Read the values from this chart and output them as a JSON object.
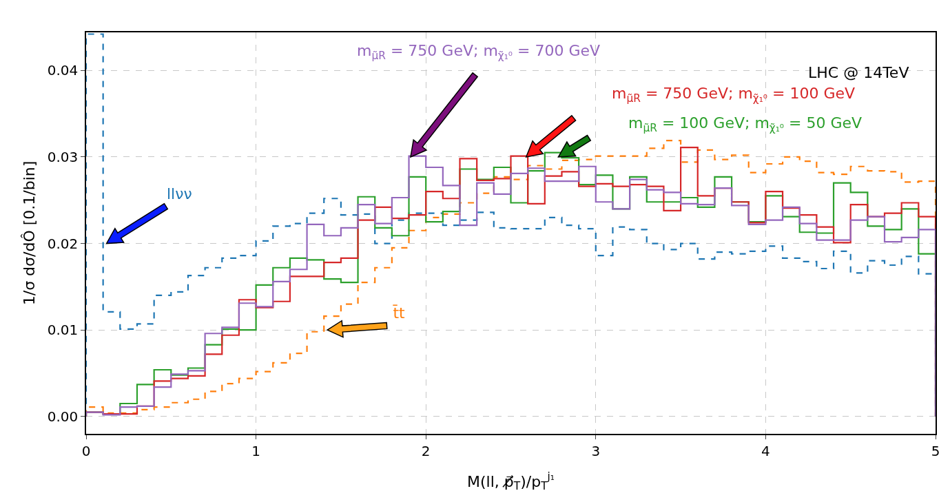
{
  "chart_data": {
    "type": "histogram",
    "xlabel": "M(ll, p̸⃗$_{T}$)/p$_{T}$$^{j₁}$",
    "ylabel": "1/σ dσ/dÔ [0.1/bin]",
    "annotations": [
      "LHC @ 14TeV"
    ],
    "bins": [
      0,
      0.1,
      0.2,
      0.3,
      0.4,
      0.5,
      0.6,
      0.7,
      0.8,
      0.9,
      1,
      1.1,
      1.2,
      1.3,
      1.4,
      1.5,
      1.6,
      1.7,
      1.8,
      1.9,
      2,
      2.1,
      2.2,
      2.3,
      2.4,
      2.5,
      2.6,
      2.7,
      2.8,
      2.9,
      3,
      3.1,
      3.2,
      3.3,
      3.4,
      3.5,
      3.6,
      3.7,
      3.8,
      3.9,
      4,
      4.1,
      4.2,
      4.3,
      4.4,
      4.5,
      4.6,
      4.7,
      4.8,
      4.9,
      5
    ],
    "series": [
      {
        "name": "llνν",
        "color": "#1f77b4",
        "line_style": "dashed",
        "values": [
          0.0442,
          0.0121,
          0.0101,
          0.0107,
          0.014,
          0.0144,
          0.0163,
          0.0172,
          0.0183,
          0.0186,
          0.0203,
          0.022,
          0.0223,
          0.0235,
          0.0252,
          0.0233,
          0.0234,
          0.02,
          0.0227,
          0.0235,
          0.0235,
          0.0221,
          0.0227,
          0.0236,
          0.0218,
          0.0217,
          0.0217,
          0.023,
          0.0221,
          0.0217,
          0.0186,
          0.0219,
          0.0216,
          0.02,
          0.0193,
          0.02,
          0.0182,
          0.019,
          0.0188,
          0.0191,
          0.0197,
          0.0183,
          0.0179,
          0.0171,
          0.0191,
          0.0166,
          0.018,
          0.0175,
          0.0185,
          0.0165
        ]
      },
      {
        "name": "t̄t",
        "color": "#ff7f0e",
        "line_style": "dashed",
        "values": [
          0.0011,
          0.0004,
          0.0004,
          0.0008,
          0.0011,
          0.0016,
          0.002,
          0.0029,
          0.0038,
          0.0044,
          0.0052,
          0.0062,
          0.0073,
          0.0098,
          0.0116,
          0.013,
          0.0155,
          0.0172,
          0.0195,
          0.0215,
          0.023,
          0.0234,
          0.0247,
          0.0258,
          0.0277,
          0.0274,
          0.029,
          0.0286,
          0.0296,
          0.0297,
          0.0301,
          0.0301,
          0.0301,
          0.031,
          0.0319,
          0.0294,
          0.0308,
          0.0297,
          0.0302,
          0.0282,
          0.0292,
          0.03,
          0.0295,
          0.0282,
          0.028,
          0.0289,
          0.0284,
          0.0283,
          0.0271,
          0.0272
        ]
      },
      {
        "name": "m$_{μ̃R}$ = 100 GeV; m$_{χ̃₁⁰}$ = 50 GeV",
        "color": "#2ca02c",
        "line_style": "solid",
        "values": [
          0.0005,
          0.0003,
          0.0015,
          0.0037,
          0.0054,
          0.0048,
          0.0056,
          0.0083,
          0.0101,
          0.01,
          0.0152,
          0.0172,
          0.0183,
          0.0181,
          0.0159,
          0.0155,
          0.0254,
          0.0218,
          0.0209,
          0.0277,
          0.0225,
          0.0237,
          0.0286,
          0.0274,
          0.0288,
          0.0247,
          0.0284,
          0.0305,
          0.0299,
          0.0268,
          0.0279,
          0.024,
          0.0277,
          0.0248,
          0.0248,
          0.0253,
          0.0242,
          0.0277,
          0.0248,
          0.0225,
          0.0255,
          0.0231,
          0.0213,
          0.0212,
          0.027,
          0.0259,
          0.022,
          0.0216,
          0.024,
          0.0188
        ]
      },
      {
        "name": "m$_{μ̃R}$ = 750 GeV; m$_{χ̃₁⁰}$ = 100 GeV",
        "color": "#d62728",
        "line_style": "solid",
        "values": [
          0.0005,
          0.0003,
          0.0003,
          0.0012,
          0.0041,
          0.0044,
          0.0047,
          0.0072,
          0.0094,
          0.0135,
          0.0126,
          0.0133,
          0.0162,
          0.0162,
          0.0178,
          0.0183,
          0.0227,
          0.0242,
          0.0229,
          0.0233,
          0.026,
          0.0252,
          0.0298,
          0.0273,
          0.0275,
          0.0301,
          0.0246,
          0.0278,
          0.0283,
          0.0266,
          0.0269,
          0.0266,
          0.0268,
          0.0266,
          0.0238,
          0.0311,
          0.0255,
          0.0264,
          0.0248,
          0.0224,
          0.026,
          0.0241,
          0.0233,
          0.0219,
          0.0201,
          0.0245,
          0.0231,
          0.0235,
          0.0247,
          0.0231
        ]
      },
      {
        "name": "m$_{μ̃R}$ = 750 GeV; m$_{χ̃₁⁰}$ = 700 GeV",
        "color": "#9467bd",
        "line_style": "solid",
        "values": [
          0.0005,
          0.0002,
          0.0011,
          0.0012,
          0.0034,
          0.0049,
          0.0053,
          0.0096,
          0.0103,
          0.0131,
          0.0127,
          0.0156,
          0.017,
          0.0222,
          0.0209,
          0.0218,
          0.0245,
          0.0223,
          0.0253,
          0.0301,
          0.0288,
          0.0267,
          0.0221,
          0.027,
          0.0257,
          0.0281,
          0.0287,
          0.0272,
          0.0272,
          0.0289,
          0.0248,
          0.024,
          0.0274,
          0.0262,
          0.0259,
          0.0246,
          0.0245,
          0.0264,
          0.0244,
          0.0222,
          0.0227,
          0.0242,
          0.0223,
          0.0204,
          0.0204,
          0.0227,
          0.0231,
          0.0202,
          0.0207,
          0.0216
        ]
      }
    ],
    "xlim": [
      0,
      5
    ],
    "xticks": [
      0,
      1,
      2,
      3,
      4,
      5
    ],
    "ylim": [
      -0.002,
      0.0444
    ],
    "yticks": [
      {
        "value": 0,
        "label": "0.00"
      },
      {
        "value": 0.01,
        "label": "0.01"
      },
      {
        "value": 0.02,
        "label": "0.02"
      },
      {
        "value": 0.03,
        "label": "0.03"
      },
      {
        "value": 0.04,
        "label": "0.04"
      }
    ],
    "grid": true,
    "legend": false
  }
}
